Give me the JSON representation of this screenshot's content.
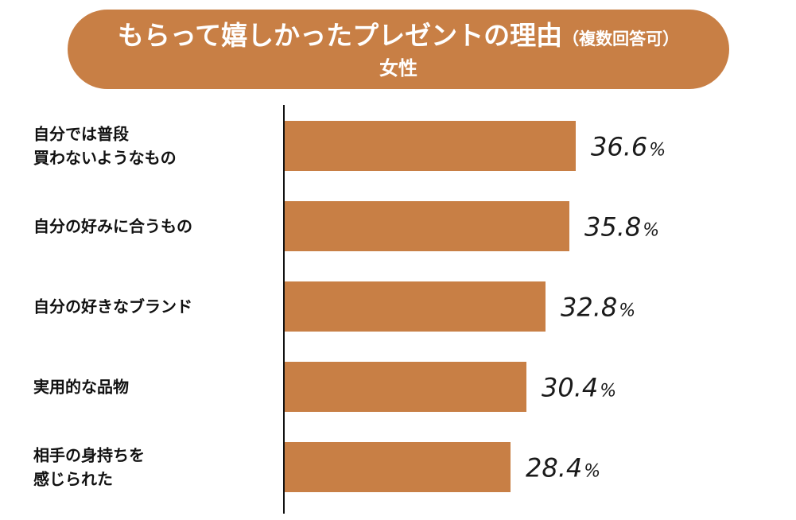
{
  "title": {
    "main": "もらって嬉しかったプレゼントの理由",
    "note": "（複数回答可）",
    "subtitle": "女性"
  },
  "colors": {
    "accent": "#c87f45",
    "text": "#111111",
    "axis": "#111111"
  },
  "chart_data": {
    "type": "bar",
    "orientation": "horizontal",
    "title": "もらって嬉しかったプレゼントの理由（複数回答可）",
    "subtitle": "女性",
    "categories": [
      [
        "自分では普段",
        "買わないようなもの"
      ],
      [
        "自分の好みに合うもの"
      ],
      [
        "自分の好きなブランド"
      ],
      [
        "実用的な品物"
      ],
      [
        "相手の身持ちを",
        "感じられた"
      ]
    ],
    "values": [
      36.6,
      35.8,
      32.8,
      30.4,
      28.4
    ],
    "value_labels": [
      "36.6",
      "35.8",
      "32.8",
      "30.4",
      "28.4"
    ],
    "unit": "%",
    "xlim": [
      0,
      40
    ],
    "grid": false,
    "legend": "none"
  }
}
